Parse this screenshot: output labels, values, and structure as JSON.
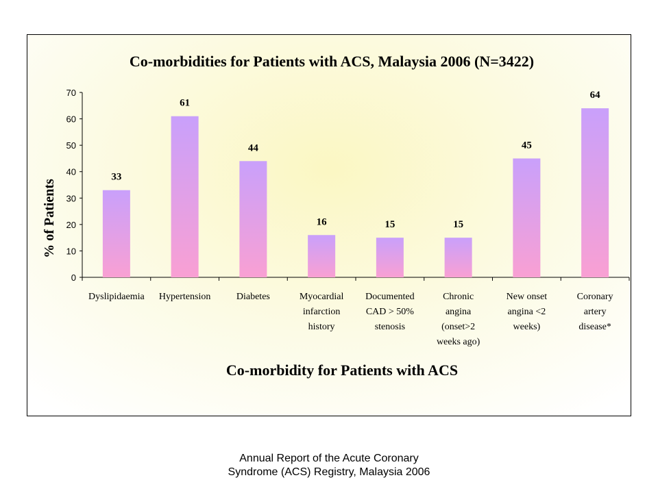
{
  "chart_data": {
    "type": "bar",
    "title": "Co-morbidities for Patients with ACS, Malaysia 2006 (N=3422)",
    "xlabel": "Co-morbidity for Patients with ACS",
    "ylabel": "% of Patients",
    "ylim": [
      0,
      70
    ],
    "yticks": [
      "0",
      "10",
      "20",
      "30",
      "40",
      "50",
      "60",
      "70"
    ],
    "grid": false,
    "categories": [
      [
        "Dyslipidaemia"
      ],
      [
        "Hypertension"
      ],
      [
        "Diabetes"
      ],
      [
        "Myocardial",
        "infarction",
        "history"
      ],
      [
        "Documented",
        "CAD > 50%",
        "stenosis"
      ],
      [
        "Chronic",
        "angina",
        "(onset>2",
        "weeks ago)"
      ],
      [
        "New onset",
        "angina <2",
        "weeks)"
      ],
      [
        "Coronary",
        "artery",
        "disease*"
      ]
    ],
    "values": [
      33,
      61,
      44,
      16,
      15,
      15,
      45,
      64
    ],
    "data_labels": [
      "33",
      "61",
      "44",
      "16",
      "15",
      "15",
      "45",
      "64"
    ],
    "bar_color_top": "#c9a0fb",
    "bar_color_bottom": "#f9a0d3"
  },
  "caption": {
    "line1": "Annual Report of the Acute Coronary",
    "line2": "Syndrome (ACS) Registry, Malaysia 2006"
  }
}
